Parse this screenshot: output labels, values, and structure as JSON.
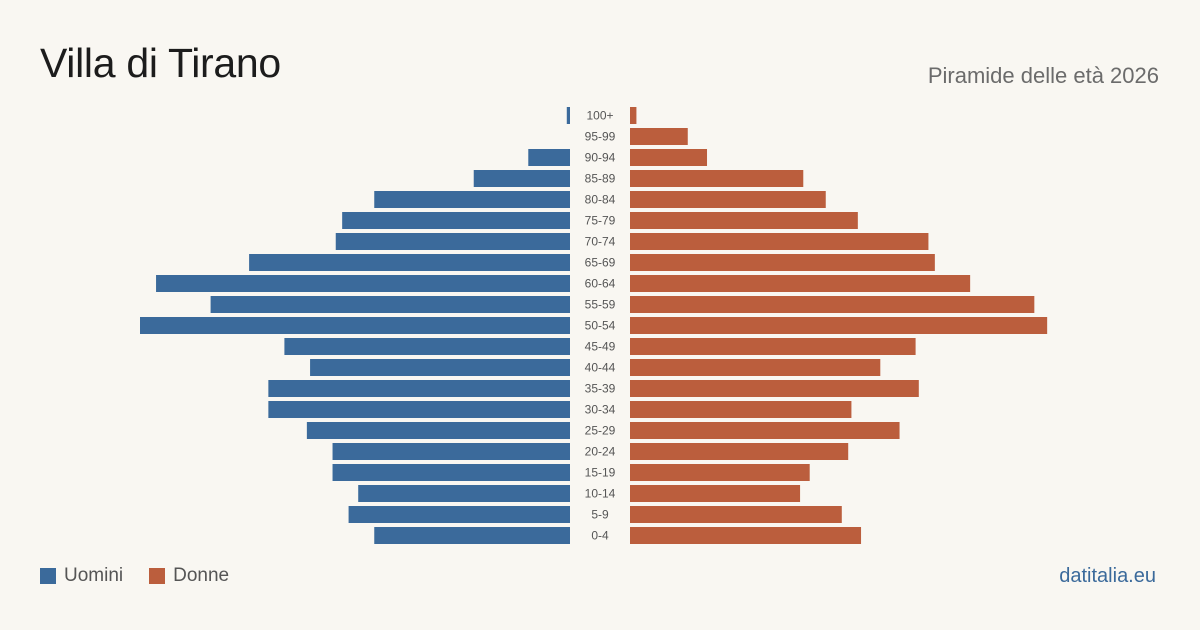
{
  "header": {
    "title": "Villa di Tirano",
    "subtitle": "Piramide delle età 2026"
  },
  "legend": {
    "men_label": "Uomini",
    "women_label": "Donne"
  },
  "footer": {
    "brand": "datitalia.eu"
  },
  "colors": {
    "men": "#3b6a9b",
    "women": "#bb5e3d",
    "background": "#f9f7f2"
  },
  "chart_data": {
    "type": "bar",
    "orientation": "horizontal-pyramid",
    "categories": [
      "100+",
      "95-99",
      "90-94",
      "85-89",
      "80-84",
      "75-79",
      "70-74",
      "65-69",
      "60-64",
      "55-59",
      "50-54",
      "45-49",
      "40-44",
      "35-39",
      "30-34",
      "25-29",
      "20-24",
      "15-19",
      "10-14",
      "5-9",
      "0-4"
    ],
    "series": [
      {
        "name": "Uomini",
        "values": [
          1,
          0,
          13,
          30,
          61,
          71,
          73,
          100,
          129,
          112,
          134,
          89,
          81,
          94,
          94,
          82,
          74,
          74,
          66,
          69,
          61
        ]
      },
      {
        "name": "Donne",
        "values": [
          2,
          18,
          24,
          54,
          61,
          71,
          93,
          95,
          106,
          126,
          130,
          89,
          78,
          90,
          69,
          84,
          68,
          56,
          53,
          66,
          72
        ]
      }
    ]
  }
}
